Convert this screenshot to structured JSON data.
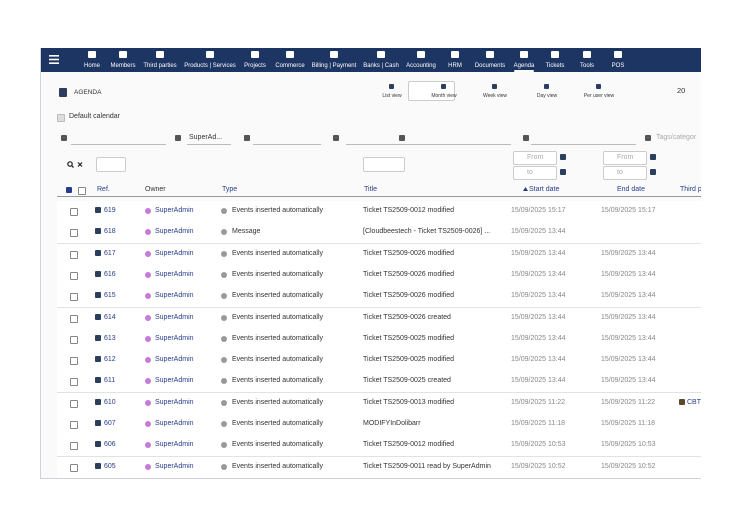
{
  "nav": {
    "items": [
      "Home",
      "Members",
      "Third parties",
      "Products | Services",
      "Projects",
      "Commerce",
      "Billing | Payment",
      "Banks | Cash",
      "Accounting",
      "HRM",
      "Documents",
      "Agenda",
      "Tickets",
      "Tools",
      "POS"
    ]
  },
  "header": {
    "title": "AGENDA"
  },
  "views": [
    "List view",
    "Month view",
    "Week view",
    "Day view",
    "Per user view"
  ],
  "page_size": "20",
  "default_calendar": "Default calendar",
  "filters": {
    "owner": "SuperAd...",
    "tags_placeholder": "Tags/categor",
    "from": "From",
    "to": "to"
  },
  "table": {
    "columns": [
      "Ref.",
      "Owner",
      "Type",
      "Title",
      "Start date",
      "End date",
      "Third p"
    ],
    "rows": [
      [
        "619",
        "SuperAdmin",
        "Events inserted automatically",
        "Ticket TS2509-0012 modified",
        "15/09/2025 15:17",
        "15/09/2025 15:17"
      ],
      [
        "618",
        "SuperAdmin",
        "Message",
        "[Cloudbeestech - Ticket TS2509-0026] ...",
        "15/09/2025 13:44"
      ],
      [
        "617",
        "SuperAdmin",
        "Events inserted automatically",
        "Ticket TS2509-0026 modified",
        "15/09/2025 13:44",
        "15/09/2025 13:44"
      ],
      [
        "616",
        "SuperAdmin",
        "Events inserted automatically",
        "Ticket TS2509-0026 modified",
        "15/09/2025 13:44",
        "15/09/2025 13:44"
      ],
      [
        "615",
        "SuperAdmin",
        "Events inserted automatically",
        "Ticket TS2509-0026 modified",
        "15/09/2025 13:44",
        "15/09/2025 13:44"
      ],
      [
        "614",
        "SuperAdmin",
        "Events inserted automatically",
        "Ticket TS2509-0026 created",
        "15/09/2025 13:44",
        "15/09/2025 13:44"
      ],
      [
        "613",
        "SuperAdmin",
        "Events inserted automatically",
        "Ticket TS2509-0025 modified",
        "15/09/2025 13:44",
        "15/09/2025 13:44"
      ],
      [
        "612",
        "SuperAdmin",
        "Events inserted automatically",
        "Ticket TS2509-0025 modified",
        "15/09/2025 13:44",
        "15/09/2025 13:44"
      ],
      [
        "611",
        "SuperAdmin",
        "Events inserted automatically",
        "Ticket TS2509-0025 created",
        "15/09/2025 13:44",
        "15/09/2025 13:44"
      ],
      [
        "610",
        "SuperAdmin",
        "Events inserted automatically",
        "Ticket TS2509-0013 modified",
        "15/09/2025 11:22",
        "15/09/2025 11:22",
        "CBT"
      ],
      [
        "607",
        "SuperAdmin",
        "Events inserted automatically",
        "MODIFYInDolibarr",
        "15/09/2025 11:18",
        "15/09/2025 11:18"
      ],
      [
        "606",
        "SuperAdmin",
        "Events inserted automatically",
        "Ticket TS2509-0012 modified",
        "15/09/2025 10:53",
        "15/09/2025 10:53"
      ],
      [
        "605",
        "SuperAdmin",
        "Events inserted automatically",
        "Ticket TS2509-0011 read by SuperAdmin",
        "15/09/2025 10:52",
        "15/09/2025 10:52"
      ]
    ]
  }
}
